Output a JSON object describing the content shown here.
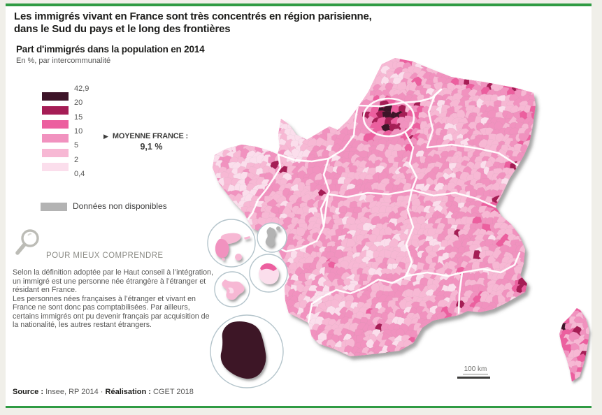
{
  "page": {
    "background": "#f0efe9",
    "card_background": "#ffffff",
    "accent_green": "#2f9b43"
  },
  "header": {
    "title_line1": "Les immigrés vivant en France sont très concentrés en région parisienne,",
    "title_line2": "dans le Sud du pays et le long des frontières"
  },
  "map_block": {
    "title": "Part d'immigrés dans la population en 2014",
    "subtitle": "En %, par intercommunalité"
  },
  "legend": {
    "breaks": [
      "42,9",
      "20",
      "15",
      "10",
      "5",
      "2",
      "0,4"
    ],
    "class_colors": [
      "#3d1428",
      "#a51d55",
      "#ec5f9f",
      "#f192bf",
      "#f7b8d4",
      "#fbdeec"
    ],
    "no_data_label": "Données non disponibles",
    "no_data_color": "#b3b3b3",
    "average_marker": "▶",
    "average_label": "MOYENNE FRANCE :",
    "average_value": "9,1 %"
  },
  "explainer": {
    "heading": "POUR MIEUX COMPRENDRE",
    "paragraph1": "Selon la définition adoptée par le Haut conseil à l’intégration, un immigré est une personne née étrangère à l’étranger et résidant en France.",
    "paragraph2": "Les personnes nées françaises à l’étranger et vivant en France ne sont donc pas comptabilisées. Par ailleurs, certains immigrés ont pu devenir français par acquisition de la nationalité, les autres restant étrangers."
  },
  "map": {
    "scale_label": "100 km",
    "region_border_color": "#ffffff",
    "insets": [
      "guadeloupe",
      "mayotte",
      "martinique",
      "reunion",
      "guyane"
    ]
  },
  "footer": {
    "source_label": "Source :",
    "source_value": "Insee, RP 2014",
    "separator": "·",
    "realisation_label": "Réalisation :",
    "realisation_value": "CGET 2018"
  }
}
